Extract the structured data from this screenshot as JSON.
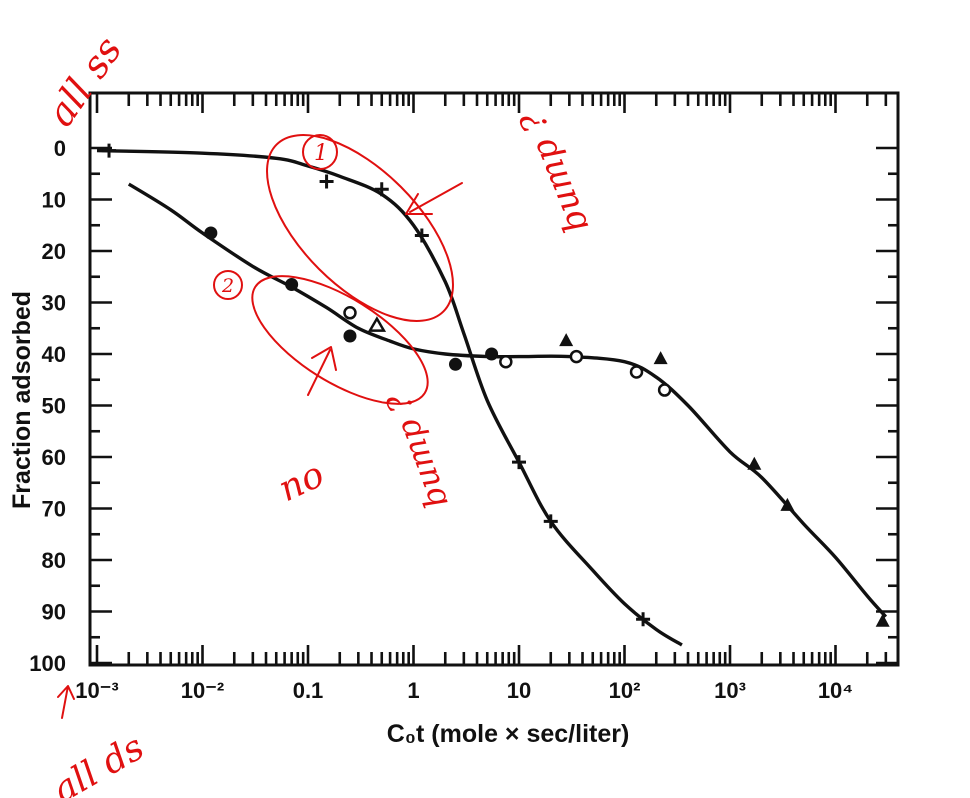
{
  "chart_data": {
    "type": "scatter",
    "title": "",
    "xlabel": "C₀t (mole × sec/liter)",
    "ylabel": "Fraction adsorbed",
    "xscale": "log",
    "xlim": [
      0.001,
      50000
    ],
    "ylim": [
      100,
      -5
    ],
    "x_tick_labels": [
      "10⁻³",
      "10⁻²",
      "0.1",
      "1",
      "10",
      "10²",
      "10³",
      "10⁴"
    ],
    "y_tick_labels": [
      "0",
      "10",
      "20",
      "30",
      "40",
      "50",
      "60",
      "70",
      "80",
      "90",
      "100"
    ],
    "grid": false,
    "series": [
      {
        "marker": "plus",
        "points": [
          [
            0.0013,
            0.5
          ],
          [
            0.15,
            6.5
          ],
          [
            0.5,
            8
          ],
          [
            1.2,
            17
          ],
          [
            10,
            61
          ],
          [
            20,
            72.5
          ],
          [
            150,
            91.5
          ]
        ]
      },
      {
        "marker": "filled-circle",
        "points": [
          [
            0.012,
            16.5
          ],
          [
            0.07,
            26.5
          ],
          [
            0.25,
            36.5
          ],
          [
            2.5,
            42
          ],
          [
            5.5,
            40
          ]
        ]
      },
      {
        "marker": "open-circle",
        "points": [
          [
            0.25,
            32
          ],
          [
            7.5,
            41.5
          ],
          [
            35,
            40.5
          ],
          [
            130,
            43.5
          ],
          [
            240,
            47
          ]
        ]
      },
      {
        "marker": "open-triangle",
        "points": [
          [
            0.45,
            34.5
          ]
        ]
      },
      {
        "marker": "filled-triangle",
        "points": [
          [
            28,
            37.5
          ],
          [
            220,
            41
          ],
          [
            1700,
            61.5
          ],
          [
            3500,
            69.5
          ],
          [
            28000,
            92
          ]
        ]
      }
    ],
    "curves": [
      {
        "name_hint": "single-stranded",
        "points": [
          [
            0.001,
            0.5
          ],
          [
            0.01,
            1
          ],
          [
            0.05,
            2
          ],
          [
            0.1,
            3.5
          ],
          [
            0.2,
            5.5
          ],
          [
            0.5,
            9
          ],
          [
            1,
            15
          ],
          [
            2,
            26
          ],
          [
            3,
            36
          ],
          [
            5,
            49
          ],
          [
            10,
            61
          ],
          [
            20,
            72.5
          ],
          [
            50,
            82
          ],
          [
            100,
            88.5
          ],
          [
            200,
            93.5
          ],
          [
            350,
            96.5
          ]
        ]
      },
      {
        "name_hint": "double-stranded",
        "points": [
          [
            0.002,
            7
          ],
          [
            0.005,
            12
          ],
          [
            0.01,
            16.5
          ],
          [
            0.03,
            23
          ],
          [
            0.07,
            27
          ],
          [
            0.15,
            31
          ],
          [
            0.3,
            35
          ],
          [
            0.6,
            37.5
          ],
          [
            1,
            39
          ],
          [
            2,
            40
          ],
          [
            5,
            40.5
          ],
          [
            10,
            40.5
          ],
          [
            30,
            40.5
          ],
          [
            100,
            41.5
          ],
          [
            200,
            44.5
          ],
          [
            400,
            50
          ],
          [
            1000,
            59
          ],
          [
            2000,
            64
          ],
          [
            5000,
            73
          ],
          [
            10000,
            79.5
          ],
          [
            20000,
            87
          ],
          [
            30000,
            91
          ]
        ]
      }
    ]
  },
  "annotations": {
    "top_left": "all ss",
    "bottom_left": "all ds",
    "circle_1": "1",
    "circle_2": "2",
    "note_bump": "bump ?",
    "note_no": "no",
    "note_no_bump": "bump ?"
  }
}
